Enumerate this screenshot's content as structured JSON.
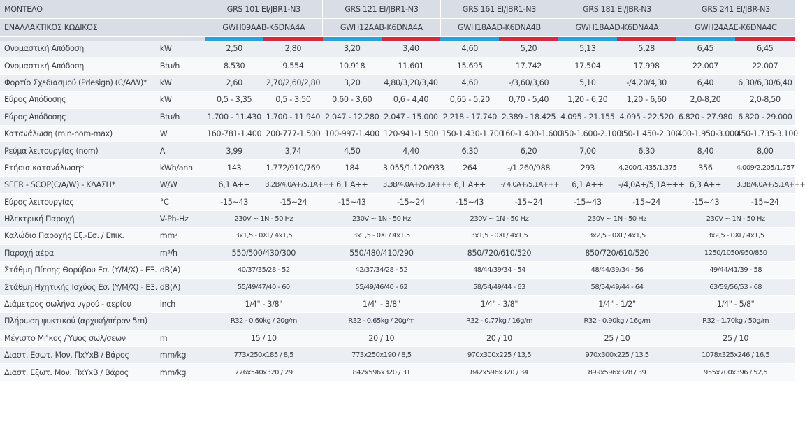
{
  "header": {
    "label_model": "ΜΟΝΤΕΛΟ",
    "label_alt_code": "ΕΝΑΛΛΑΚΤΙΚΟΣ ΚΩΔΙΚΟΣ",
    "models": [
      {
        "name": "GRS 101 EI/JBR1-N3",
        "code": "GWH09AAB-K6DNA4A"
      },
      {
        "name": "GRS 121 EI/JBR1-N3",
        "code": "GWH12AAB-K6DNA4A"
      },
      {
        "name": "GRS 161 EI/JBR1-N3",
        "code": "GWH18AAD-K6DNA4B"
      },
      {
        "name": "GRS 181 EI/JBR-N3",
        "code": "GWH18AAD-K6DNA4A"
      },
      {
        "name": "GRS 241 EI/JBR-N3",
        "code": "GWH24AAE-K6DNA4C"
      }
    ],
    "bar_colors": {
      "cooling": "#2aa1d8",
      "heating": "#d6283f"
    }
  },
  "rows": [
    {
      "label": "Ονομαστική Απόδοση",
      "unit": "kW",
      "split": true,
      "values": [
        "2,50",
        "2,80",
        "3,20",
        "3,40",
        "4,60",
        "5,20",
        "5,13",
        "5,28",
        "6,45",
        "6,45"
      ]
    },
    {
      "label": "Ονομαστική Απόδοση",
      "unit": "Btu/h",
      "split": true,
      "values": [
        "8.530",
        "9.554",
        "10.918",
        "11.601",
        "15.695",
        "17.742",
        "17.504",
        "17.998",
        "22.007",
        "22.007"
      ]
    },
    {
      "label": "Φορτίο Σχεδιασμού (Pdesign) (C/A/W)*",
      "unit": "kW",
      "split": true,
      "values": [
        "2,60",
        "2,70/2,60/2,80",
        "3,20",
        "4,80/3,20/3,40",
        "4,60",
        "-/3,60/3,60",
        "5,10",
        "-/4,20/4,30",
        "6,40",
        "6,30/6,30/6,40"
      ]
    },
    {
      "label": "Εύρος Απόδοσης",
      "unit": "kW",
      "split": true,
      "values": [
        "0,5 - 3,35",
        "0,5 - 3,50",
        "0,60 - 3,60",
        "0,6 - 4,40",
        "0,65 - 5,20",
        "0,70 - 5,40",
        "1,20 - 6,20",
        "1,20 - 6,60",
        "2,0-8,20",
        "2,0-8,50"
      ]
    },
    {
      "label": "Εύρος Απόδοσης",
      "unit": "Btu/h",
      "split": true,
      "values": [
        "1.700 - 11.430",
        "1.700 - 11.940",
        "2.047 - 12.280",
        "2.047 - 15.000",
        "2.218 - 17.740",
        "2.389 - 18.425",
        "4.095 - 21.155",
        "4.095 - 22.520",
        "6.820 - 27.980",
        "6.820 - 29.000"
      ]
    },
    {
      "label": "Κατανάλωση (min-nom-max)",
      "unit": "W",
      "split": true,
      "values": [
        "160-781-1.400",
        "200-777-1.500",
        "100-997-1.400",
        "120-941-1.500",
        "150-1.430-1.700",
        "160-1.400-1.600",
        "350-1.600-2.100",
        "350-1.450-2.300",
        "400-1.950-3.000",
        "450-1.735-3.100"
      ]
    },
    {
      "label": "Ρεύμα λειτουργίας (nom)",
      "unit": "A",
      "split": true,
      "values": [
        "3,99",
        "3,74",
        "4,50",
        "4,40",
        "6,30",
        "6,20",
        "7,00",
        "6,30",
        "8,40",
        "8,00"
      ]
    },
    {
      "label": "Ετήσια κατανάλωση*",
      "unit": "kWh/ann",
      "split": true,
      "values": [
        "143",
        "1.772/910/769",
        "184",
        "3.055/1.120/933",
        "264",
        "-/1.260/988",
        "293",
        "4.200/1.435/1.375",
        "356",
        "4.009/2.205/1.757"
      ]
    },
    {
      "label": "SEER - SCOP(C/A/W) - ΚΛΑΣΗ*",
      "unit": "W/W",
      "split": true,
      "values": [
        "6,1 A++",
        "3,2B/4,0A+/5,1A+++",
        "6,1 A++",
        "3,3B/4,0A+/5,1A+++",
        "6,1 A++",
        "-/ 4,0A+/5,1A+++",
        "6,1 A++",
        "-/4,0A+/5,1A+++",
        "6,3 A++",
        "3,3B/4,0A+/5,1A+++"
      ]
    },
    {
      "label": "Εύρος λειτουργίας",
      "unit": "°C",
      "split": true,
      "values": [
        "-15~43",
        "-15~24",
        "-15~43",
        "-15~24",
        "-15~43",
        "-15~24",
        "-15~43",
        "-15~24",
        "-15~43",
        "-15~24"
      ]
    },
    {
      "label": "Ηλεκτρική Παροχή",
      "unit": "V-Ph-Hz",
      "split": false,
      "values": [
        "230V ~ 1N - 50 Hz",
        "230V ~ 1N - 50 Hz",
        "230V ~ 1N - 50 Hz",
        "230V ~ 1N - 50 Hz",
        "230V ~ 1N - 50 Hz"
      ]
    },
    {
      "label": "Καλώδιο Παροχής Εξ.-Εσ. / Επικ.",
      "unit": "mm²",
      "split": false,
      "values": [
        "3x1,5 - 0XI / 4x1,5",
        "3x1,5 - 0XI / 4x1,5",
        "3x1,5 - 0XI / 4x1,5",
        "3x2,5 - 0XI / 4x1,5",
        "3x2,5 - 0XI / 4x1,5"
      ]
    },
    {
      "label": "Παροχή αέρα",
      "unit": "m³/h",
      "split": false,
      "values": [
        "550/500/430/300",
        "550/480/410/290",
        "850/720/610/520",
        "850/720/610/520",
        "1250/1050/950/850"
      ]
    },
    {
      "label": "Στάθμη Πίεσης Θορύβου Εσ. (Υ/Μ/Χ) - ΕΞ.",
      "unit": "dB(A)",
      "split": false,
      "values": [
        "40/37/35/28 - 52",
        "42/37/34/28 - 52",
        "48/44/39/34 - 54",
        "48/44/39/34 - 56",
        "49/44/41/39 - 58"
      ]
    },
    {
      "label": "Στάθμη Ηχητικής Ισχύος Εσ. (Υ/Μ/Χ) - ΕΞ.",
      "unit": "dB(A)",
      "split": false,
      "values": [
        "55/49/47/40 - 60",
        "55/49/46/40 - 62",
        "58/54/49/44 - 63",
        "58/54/49/44 - 64",
        "63/59/56/53 - 68"
      ]
    },
    {
      "label": "Διάμετρος σωλήνα υγρού - αερίου",
      "unit": "inch",
      "split": false,
      "values": [
        "1/4\" - 3/8\"",
        "1/4\" - 3/8\"",
        "1/4\" - 3/8\"",
        "1/4\" - 1/2\"",
        "1/4\" - 5/8\""
      ]
    },
    {
      "label": "Πλήρωση ψυκτικού (αρχική/πέραν 5m)",
      "unit": "",
      "split": false,
      "values": [
        "R32 - 0,60kg / 20g/m",
        "R32 - 0,65kg / 20g/m",
        "R32 - 0,77kg / 16g/m",
        "R32 - 0,90kg / 16g/m",
        "R32 - 1,70kg / 50g/m"
      ]
    },
    {
      "label": "Μέγιστο Μήκος /Ύψος σωλ/σεων",
      "unit": "m",
      "split": false,
      "values": [
        "15 / 10",
        "20 / 10",
        "20 / 10",
        "25 / 10",
        "25 / 10"
      ]
    },
    {
      "label": "Διαστ. Εσωτ. Μον. ΠxΥxΒ / Βάρος",
      "unit": "mm/kg",
      "split": false,
      "values": [
        "773x250x185 / 8,5",
        "773x250x190 / 8,5",
        "970x300x225 / 13,5",
        "970x300x225 / 13,5",
        "1078x325x246 / 16,5"
      ]
    },
    {
      "label": "Διαστ. Εξωτ. Μον. ΠxΥxΒ / Βάρος",
      "unit": "mm/kg",
      "split": false,
      "values": [
        "776x540x320 / 29",
        "842x596x320 / 31",
        "842x596x320 / 34",
        "899x596x378 / 39",
        "955x700x396 / 52,5"
      ]
    }
  ]
}
